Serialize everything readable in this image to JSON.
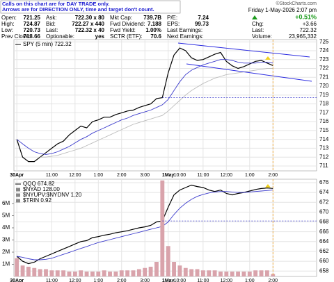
{
  "header": {
    "notes": [
      "Calls on this chart are for DAY TRADE only.",
      "Arrows are for DIRECTION ONLY, time and target don't count."
    ],
    "columns": [
      [
        [
          "Open:",
          "721.25"
        ],
        [
          "High:",
          "724.87"
        ],
        [
          "Low:",
          "720.73"
        ],
        [
          "Prev Close:",
          "718.66"
        ]
      ],
      [
        [
          "Ask:",
          "722.30 x 80"
        ],
        [
          "Bid:",
          "722.27 x 440"
        ],
        [
          "Last:",
          "722.32 x 40"
        ],
        [
          "Optionable:",
          "yes"
        ]
      ],
      [
        [
          "Mkt Cap:",
          "739.7B"
        ],
        [
          "Fwd Dividend:",
          "7.188"
        ],
        [
          "Fwd Yield:",
          "1.00%"
        ],
        [
          "SCTR (ETF):",
          "70.6"
        ]
      ],
      [
        [
          "P/E:",
          "7.24"
        ],
        [
          "EPS:",
          "99.73"
        ],
        [
          "Last Earnings:"
        ],
        [
          "Next Earnings:"
        ]
      ]
    ],
    "copyright": "©StockCharts.com",
    "date": "Friday 1-May-2026 2:07 pm",
    "pct": "+0.51%",
    "chg": [
      "Chg:",
      "+3.66"
    ],
    "last": [
      "Last:",
      "722.32"
    ],
    "volume": [
      "Volume:",
      "23,965,332"
    ]
  },
  "chart_data": [
    {
      "type": "line",
      "categories": [
        "30Apr",
        null,
        null,
        null,
        null,
        null,
        "11:00",
        null,
        null,
        null,
        "12:00",
        null,
        null,
        null,
        "1:00",
        null,
        null,
        null,
        "2:00",
        null,
        null,
        null,
        "3:00",
        null,
        null,
        null,
        "1May",
        null,
        "10:00",
        null,
        null,
        null,
        "11:00",
        null,
        null,
        null,
        "12:00",
        null,
        null,
        null,
        "1:00",
        null,
        null,
        null,
        "2:00",
        null,
        null,
        null,
        null,
        null,
        null,
        null
      ],
      "series": [
        {
          "name": "SPY (5 min) 722.32",
          "color": "#000000",
          "values": [
            714,
            712,
            711.5,
            711.5,
            712,
            712.5,
            713,
            713.5,
            713.8,
            714.5,
            715,
            715.5,
            715.3,
            716,
            716.2,
            716.5,
            716.5,
            716.8,
            717,
            717.2,
            717.3,
            717.6,
            717.8,
            718,
            718.6,
            718.7,
            721.5,
            723.5,
            724.3,
            724,
            723.2,
            722.9,
            723,
            723.3,
            723.6,
            723.8,
            722.8,
            722.3,
            722,
            722.2,
            722.5,
            722.8,
            722.9,
            722.6,
            722.32,
            null,
            null,
            null,
            null,
            null,
            null,
            null
          ]
        },
        {
          "color": "#3a3acc",
          "values": [
            714,
            713.5,
            713,
            712.6,
            712.4,
            712.3,
            712.4,
            712.6,
            712.9,
            713.2,
            713.6,
            714,
            714.3,
            714.7,
            715,
            715.3,
            715.6,
            715.9,
            716.2,
            716.4,
            716.7,
            716.9,
            717.1,
            717.3,
            717.6,
            717.9,
            718.5,
            719.5,
            720.5,
            721.3,
            721.8,
            722.1,
            722.4,
            722.6,
            722.8,
            723,
            723,
            722.9,
            722.7,
            722.6,
            722.6,
            722.6,
            722.7,
            722.7,
            722.6,
            null,
            null,
            null,
            null,
            null,
            null,
            null
          ]
        },
        {
          "color": "#bbbbbb",
          "values": [
            null,
            null,
            null,
            null,
            712,
            712,
            712.1,
            712.2,
            712.4,
            712.6,
            712.8,
            713,
            713.3,
            713.6,
            713.9,
            714.2,
            714.5,
            714.8,
            715.1,
            715.4,
            715.7,
            715.9,
            716.1,
            716.3,
            716.5,
            716.7,
            717.2,
            717.8,
            718.4,
            719,
            719.5,
            719.9,
            720.3,
            720.6,
            720.9,
            721.1,
            721.3,
            721.4,
            721.5,
            721.6,
            721.7,
            721.8,
            721.9,
            722,
            722,
            null,
            null,
            null,
            null,
            null,
            null,
            null
          ]
        }
      ],
      "ylim": [
        710.45,
        725.25
      ],
      "yticks": [
        711,
        712,
        713,
        714,
        715,
        716,
        717,
        718,
        719,
        720,
        721,
        722,
        723,
        724,
        725
      ],
      "grid": true
    },
    {
      "type": "line",
      "categories": [
        "30Apr",
        null,
        null,
        null,
        null,
        null,
        "11:00",
        null,
        null,
        null,
        "12:00",
        null,
        null,
        null,
        "1:00",
        null,
        null,
        null,
        "2:00",
        null,
        null,
        null,
        "3:00",
        null,
        null,
        null,
        "1May",
        null,
        "10:00",
        null,
        null,
        null,
        "11:00",
        null,
        null,
        null,
        "12:00",
        null,
        null,
        null,
        "1:00",
        null,
        null,
        null,
        "2:00",
        null,
        null,
        null,
        null,
        null,
        null,
        null
      ],
      "series": [
        {
          "name": "QQQ 674.82",
          "color": "#000000",
          "values": [
            661,
            660,
            659.5,
            659.8,
            660.5,
            661,
            661.5,
            662,
            662.5,
            663,
            663.5,
            664,
            664.2,
            664.8,
            665,
            665.3,
            665.5,
            665.8,
            666,
            666.2,
            666.5,
            666.8,
            667,
            667.3,
            668,
            668.2,
            671,
            673.5,
            674.5,
            675,
            675.5,
            675.2,
            675,
            674.5,
            674.2,
            674.5,
            673.8,
            673.5,
            673.8,
            674,
            674.3,
            674.6,
            674.8,
            674.9,
            674.82,
            null,
            null,
            null,
            null,
            null,
            null,
            null
          ]
        },
        {
          "color": "#3a3acc",
          "values": [
            661,
            660.8,
            660.5,
            660.3,
            660.3,
            660.4,
            660.6,
            661,
            661.4,
            661.8,
            662.2,
            662.6,
            663,
            663.4,
            663.8,
            664.1,
            664.4,
            664.7,
            665,
            665.3,
            665.6,
            665.9,
            666.2,
            666.5,
            666.8,
            667.1,
            668,
            669.5,
            670.8,
            671.8,
            672.6,
            673.2,
            673.6,
            673.9,
            674.1,
            674.2,
            674.2,
            674.1,
            674,
            674,
            674.1,
            674.2,
            674.3,
            674.4,
            674.5,
            null,
            null,
            null,
            null,
            null,
            null,
            null
          ]
        },
        {
          "color": "#d9a3ab",
          "axis": "y2",
          "values": [
            1500000,
            900000,
            800000,
            700000,
            600000,
            600000,
            500000,
            500000,
            500000,
            400000,
            400000,
            500000,
            400000,
            400000,
            400000,
            500000,
            400000,
            400000,
            500000,
            500000,
            500000,
            600000,
            700000,
            800000,
            1200000,
            7900000,
            2500000,
            1200000,
            900000,
            700000,
            600000,
            600000,
            500000,
            500000,
            500000,
            400000,
            400000,
            400000,
            400000,
            400000,
            400000,
            500000,
            500000,
            500000,
            200000,
            null,
            null,
            null,
            null,
            null,
            null,
            null
          ]
        }
      ],
      "annotations": [
        "$NYAD 128.00",
        "$NYUPV:$NYDNV 1.20",
        "$TRIN 0.92"
      ],
      "ylim": [
        656.9,
        676.7
      ],
      "yticks": [
        658,
        660,
        662,
        664,
        666,
        668,
        670,
        672,
        674,
        676
      ],
      "y2lim": [
        0,
        8000000
      ],
      "y2ticks": [
        {
          "value": 1000000,
          "label": "1M"
        },
        {
          "value": 2000000,
          "label": "2M"
        },
        {
          "value": 3000000,
          "label": "3M"
        },
        {
          "value": 4000000,
          "label": "4M"
        },
        {
          "value": 5000000,
          "label": "5M"
        },
        {
          "value": 6000000,
          "label": "6M"
        }
      ],
      "grid": true
    }
  ]
}
